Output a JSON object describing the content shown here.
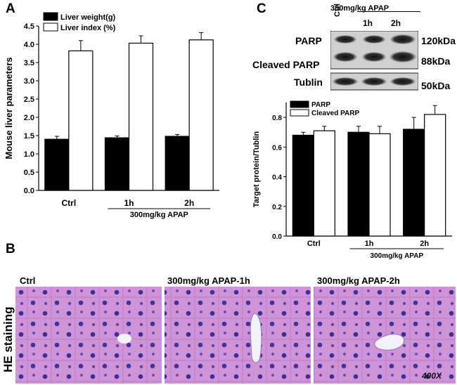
{
  "panels": {
    "a": "A",
    "b": "B",
    "c": "C"
  },
  "chart_data": [
    {
      "type": "bar",
      "panel": "A",
      "categories": [
        "Ctrl",
        "1h",
        "2h"
      ],
      "series": [
        {
          "name": "Liver weight(g)",
          "values": [
            1.4,
            1.44,
            1.48
          ],
          "errors": [
            0.08,
            0.05,
            0.05
          ],
          "color": "#000000"
        },
        {
          "name": "Liver index (%)",
          "values": [
            3.82,
            4.03,
            4.12
          ],
          "errors": [
            0.28,
            0.2,
            0.2
          ],
          "color": "#ffffff"
        }
      ],
      "ylabel": "Mouse liver parameters",
      "ylim": [
        0,
        4.5
      ],
      "yticks": [
        "0.0",
        "0.5",
        "1.0",
        "1.5",
        "2.0",
        "2.5",
        "3.0",
        "3.5",
        "4.0",
        "4.5"
      ],
      "group_label": "300mg/kg APAP",
      "legend_position": "top-left"
    },
    {
      "type": "bar",
      "panel": "C",
      "categories": [
        "Ctrl",
        "1h",
        "2h"
      ],
      "series": [
        {
          "name": "PARP",
          "values": [
            0.68,
            0.7,
            0.72
          ],
          "errors": [
            0.02,
            0.04,
            0.08
          ],
          "color": "#000000"
        },
        {
          "name": "Cleaved PARP",
          "values": [
            0.71,
            0.69,
            0.82
          ],
          "errors": [
            0.03,
            0.05,
            0.06
          ],
          "color": "#ffffff"
        }
      ],
      "ylabel": "Target protein/Tublin",
      "ylim": [
        0,
        0.9
      ],
      "yticks": [
        "0.0",
        "0.2",
        "0.4",
        "0.6",
        "0.8"
      ],
      "group_label": "300mg/kg APAP",
      "legend_position": "top-left"
    }
  ],
  "western_blot": {
    "treatment_label": "300mg/kg APAP",
    "lanes": [
      "Ctrl",
      "1h",
      "2h"
    ],
    "rows": [
      {
        "label": "PARP",
        "size": "120kDa"
      },
      {
        "label": "Cleaved PARP",
        "size": "88kDa"
      },
      {
        "label": "Tublin",
        "size": "50kDa"
      }
    ]
  },
  "histology": {
    "row_label": "HE staining",
    "panels": [
      "Ctrl",
      "300mg/kg APAP-1h",
      "300mg/kg APAP-2h"
    ],
    "magnification": "400X"
  }
}
